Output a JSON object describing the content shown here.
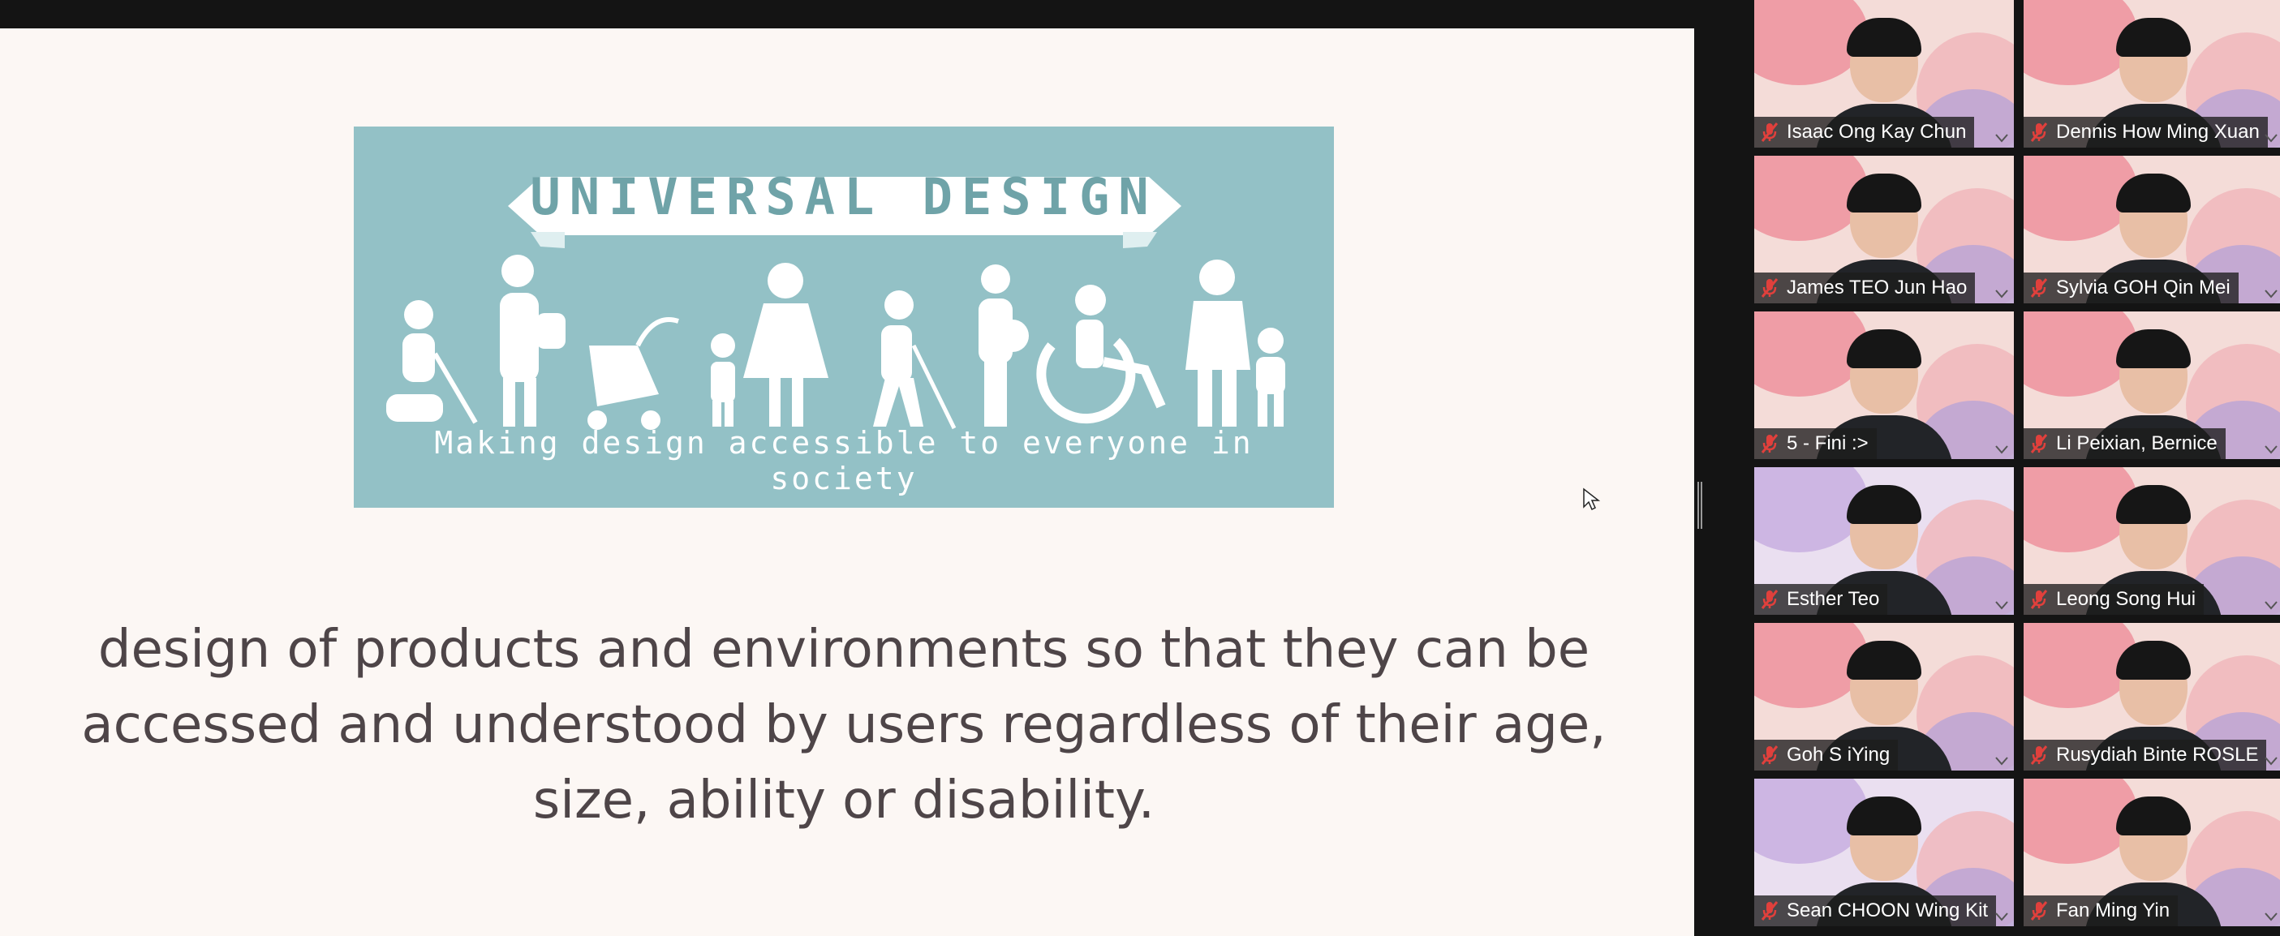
{
  "slide": {
    "banner_title": "UNIVERSAL  DESIGN",
    "banner_caption": "Making design accessible to everyone in society",
    "body_text": "design of products and environments so that they can be accessed and understood by users regardless of their age, size, ability or disability."
  },
  "participants": [
    {
      "name": "Isaac Ong Kay Chun",
      "muted": true,
      "background": "pink"
    },
    {
      "name": "Dennis How Ming Xuan",
      "muted": true,
      "background": "pink"
    },
    {
      "name": "James TEO Jun Hao",
      "muted": true,
      "background": "pink"
    },
    {
      "name": "Sylvia GOH Qin Mei",
      "muted": true,
      "background": "pink"
    },
    {
      "name": "5 - Fini :>",
      "muted": true,
      "background": "pink"
    },
    {
      "name": "Li Peixian, Bernice",
      "muted": true,
      "background": "pink"
    },
    {
      "name": "Esther Teo",
      "muted": true,
      "background": "lilac"
    },
    {
      "name": "Leong Song Hui",
      "muted": true,
      "background": "pink"
    },
    {
      "name": "Goh S iYing",
      "muted": true,
      "background": "pink"
    },
    {
      "name": "Rusydiah Binte ROSLE",
      "muted": true,
      "background": "pink"
    },
    {
      "name": "Sean CHOON Wing Kit",
      "muted": true,
      "background": "lilac"
    },
    {
      "name": "Fan Ming Yin",
      "muted": true,
      "background": "pink"
    }
  ],
  "icons": {
    "muted_mic": "mic-muted-icon",
    "pointer": "cursor-arrow-icon"
  },
  "colors": {
    "banner_bg": "#93c1c6",
    "slide_bg": "#fcf7f4",
    "body_text": "#4e4548",
    "muted_red": "#e0403c"
  }
}
